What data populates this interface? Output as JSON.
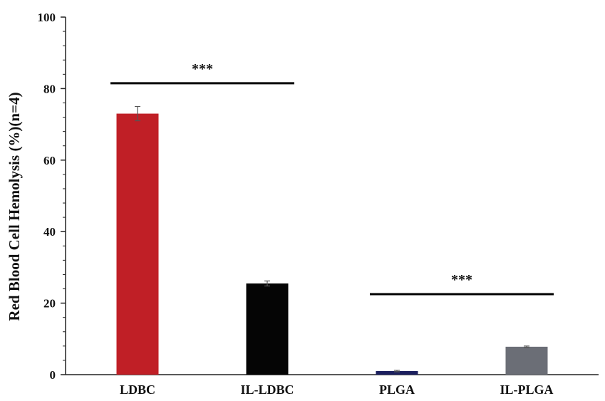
{
  "chart_data": {
    "type": "bar",
    "title": "",
    "xlabel": "",
    "ylabel": "Red Blood Cell Hemolysis (%)(n=4)",
    "ylim": [
      0,
      100
    ],
    "yticks": [
      "0",
      "20",
      "40",
      "60",
      "80",
      "100"
    ],
    "categories": [
      "LDBC",
      "IL-LDBC",
      "PLGA",
      "IL-PLGA"
    ],
    "values": [
      73,
      25.5,
      1.0,
      7.8
    ],
    "errors": [
      2.0,
      0.7,
      0.2,
      0.2
    ],
    "colors": [
      "#c01f26",
      "#050505",
      "#1b1f5e",
      "#6b6e76"
    ],
    "grid": false,
    "legend": "none",
    "annotations": [
      {
        "text": "***",
        "from": "LDBC",
        "to": "IL-LDBC",
        "y": 81.5
      },
      {
        "text": "***",
        "from": "PLGA",
        "to": "IL-PLGA",
        "y": 22.5
      }
    ]
  }
}
